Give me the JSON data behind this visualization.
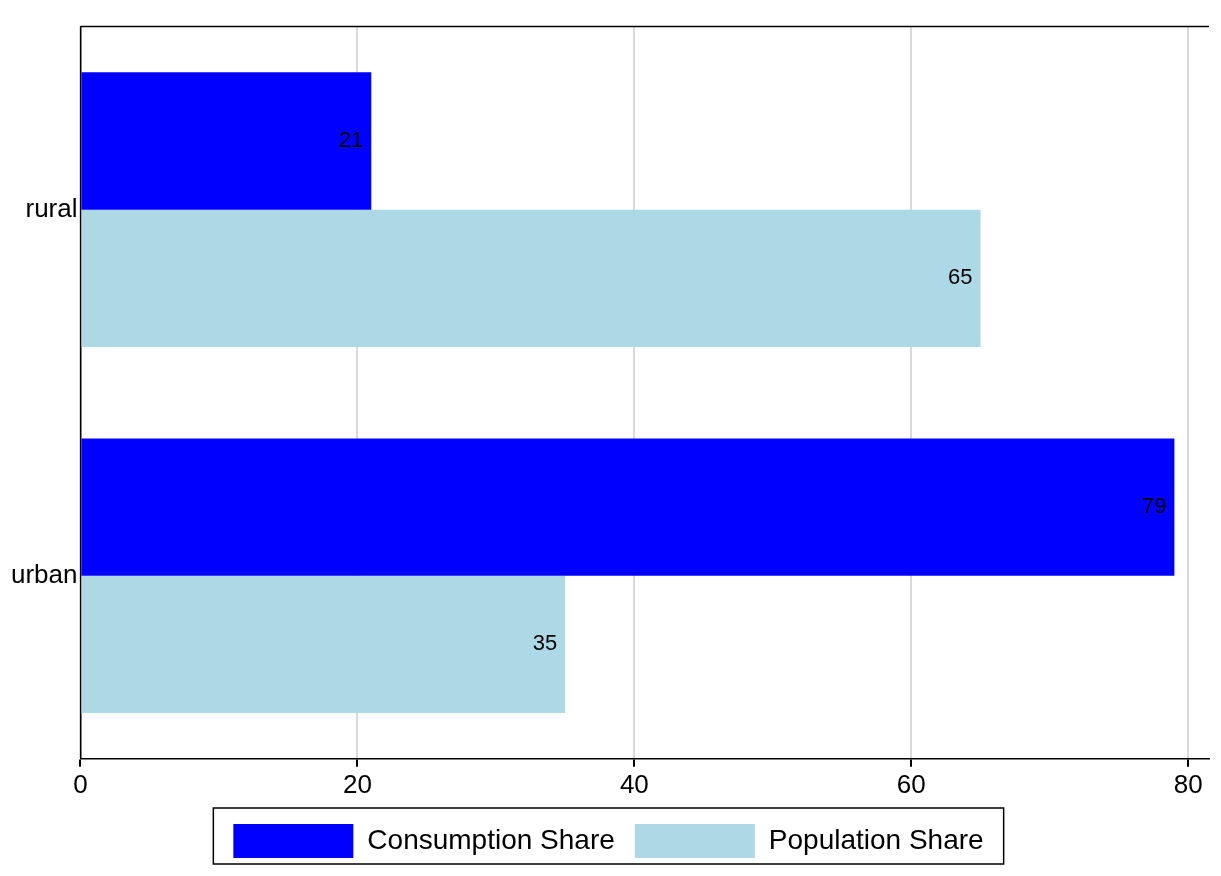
{
  "chart_data": {
    "type": "bar",
    "orientation": "horizontal",
    "categories": [
      "rural",
      "urban"
    ],
    "series": [
      {
        "name": "Consumption Share",
        "color": "#0000ff",
        "values": [
          21,
          79
        ]
      },
      {
        "name": "Population Share",
        "color": "#add8e6",
        "values": [
          65,
          35
        ]
      }
    ],
    "xlim": [
      0,
      81.5
    ],
    "xticks": [
      0,
      20,
      40,
      60,
      80
    ],
    "grid": "x",
    "legend": "bottom",
    "data_labels": true
  }
}
